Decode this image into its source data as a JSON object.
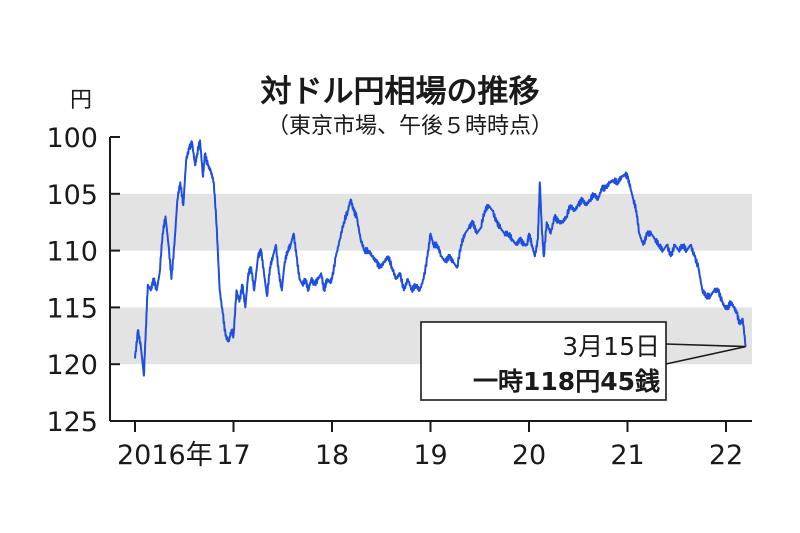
{
  "chart_data": {
    "type": "line",
    "title": "対ドル円相場の推移",
    "subtitle": "（東京市場、午後５時時点）",
    "ylabel": "円",
    "yaxis_inverted": true,
    "ylim": [
      100,
      125
    ],
    "yticks": [
      "100",
      "105",
      "110",
      "115",
      "120",
      "125"
    ],
    "shaded_bands": [
      [
        105,
        110
      ],
      [
        115,
        120
      ]
    ],
    "xlim": [
      2016.0,
      2022.25
    ],
    "x_tick_labels": [
      {
        "x": 2016.0,
        "label": "2016年"
      },
      {
        "x": 2017.0,
        "label": "17"
      },
      {
        "x": 2018.0,
        "label": "18"
      },
      {
        "x": 2019.0,
        "label": "19"
      },
      {
        "x": 2020.0,
        "label": "20"
      },
      {
        "x": 2021.0,
        "label": "21"
      },
      {
        "x": 2022.0,
        "label": "22"
      }
    ],
    "series": [
      {
        "color": "#1f4fe0",
        "points": [
          [
            2016.0,
            119.5
          ],
          [
            2016.03,
            117.0
          ],
          [
            2016.06,
            118.5
          ],
          [
            2016.09,
            121.0
          ],
          [
            2016.11,
            117.0
          ],
          [
            2016.13,
            113.0
          ],
          [
            2016.16,
            113.5
          ],
          [
            2016.19,
            112.5
          ],
          [
            2016.22,
            113.5
          ],
          [
            2016.25,
            112.0
          ],
          [
            2016.28,
            108.5
          ],
          [
            2016.31,
            107.0
          ],
          [
            2016.34,
            109.5
          ],
          [
            2016.37,
            112.5
          ],
          [
            2016.4,
            109.5
          ],
          [
            2016.43,
            105.5
          ],
          [
            2016.46,
            104.0
          ],
          [
            2016.49,
            106.0
          ],
          [
            2016.52,
            102.0
          ],
          [
            2016.55,
            101.0
          ],
          [
            2016.58,
            100.5
          ],
          [
            2016.61,
            102.5
          ],
          [
            2016.63,
            101.5
          ],
          [
            2016.66,
            100.3
          ],
          [
            2016.69,
            103.5
          ],
          [
            2016.71,
            101.5
          ],
          [
            2016.74,
            102.5
          ],
          [
            2016.77,
            103.0
          ],
          [
            2016.8,
            104.0
          ],
          [
            2016.83,
            108.0
          ],
          [
            2016.86,
            113.5
          ],
          [
            2016.89,
            115.5
          ],
          [
            2016.92,
            117.5
          ],
          [
            2016.95,
            118.0
          ],
          [
            2016.98,
            117.0
          ],
          [
            2017.0,
            117.5
          ],
          [
            2017.03,
            113.5
          ],
          [
            2017.06,
            114.5
          ],
          [
            2017.09,
            113.0
          ],
          [
            2017.12,
            115.0
          ],
          [
            2017.15,
            112.0
          ],
          [
            2017.18,
            111.5
          ],
          [
            2017.21,
            113.5
          ],
          [
            2017.25,
            110.5
          ],
          [
            2017.28,
            110.0
          ],
          [
            2017.31,
            112.0
          ],
          [
            2017.34,
            114.0
          ],
          [
            2017.37,
            111.5
          ],
          [
            2017.4,
            110.5
          ],
          [
            2017.43,
            109.5
          ],
          [
            2017.46,
            112.0
          ],
          [
            2017.49,
            113.5
          ],
          [
            2017.52,
            111.0
          ],
          [
            2017.55,
            110.0
          ],
          [
            2017.58,
            109.5
          ],
          [
            2017.61,
            108.5
          ],
          [
            2017.64,
            110.5
          ],
          [
            2017.67,
            112.5
          ],
          [
            2017.7,
            113.0
          ],
          [
            2017.73,
            112.5
          ],
          [
            2017.76,
            113.5
          ],
          [
            2017.79,
            112.5
          ],
          [
            2017.82,
            113.0
          ],
          [
            2017.86,
            112.5
          ],
          [
            2017.89,
            112.0
          ],
          [
            2017.92,
            113.5
          ],
          [
            2017.95,
            112.5
          ],
          [
            2017.98,
            112.8
          ],
          [
            2018.0,
            112.5
          ],
          [
            2018.04,
            110.5
          ],
          [
            2018.08,
            109.0
          ],
          [
            2018.12,
            107.5
          ],
          [
            2018.16,
            106.5
          ],
          [
            2018.19,
            105.5
          ],
          [
            2018.22,
            106.5
          ],
          [
            2018.25,
            107.0
          ],
          [
            2018.29,
            109.0
          ],
          [
            2018.33,
            110.0
          ],
          [
            2018.37,
            110.0
          ],
          [
            2018.41,
            110.5
          ],
          [
            2018.45,
            111.0
          ],
          [
            2018.49,
            111.5
          ],
          [
            2018.53,
            111.0
          ],
          [
            2018.57,
            110.5
          ],
          [
            2018.61,
            111.5
          ],
          [
            2018.65,
            112.5
          ],
          [
            2018.69,
            112.0
          ],
          [
            2018.73,
            113.5
          ],
          [
            2018.77,
            112.5
          ],
          [
            2018.81,
            113.5
          ],
          [
            2018.85,
            113.0
          ],
          [
            2018.89,
            113.5
          ],
          [
            2018.93,
            112.5
          ],
          [
            2018.97,
            110.5
          ],
          [
            2019.0,
            108.5
          ],
          [
            2019.03,
            109.5
          ],
          [
            2019.07,
            109.5
          ],
          [
            2019.11,
            110.5
          ],
          [
            2019.15,
            111.0
          ],
          [
            2019.19,
            110.5
          ],
          [
            2019.23,
            111.0
          ],
          [
            2019.27,
            111.5
          ],
          [
            2019.31,
            109.5
          ],
          [
            2019.35,
            108.5
          ],
          [
            2019.39,
            108.0
          ],
          [
            2019.43,
            107.5
          ],
          [
            2019.47,
            108.5
          ],
          [
            2019.51,
            108.0
          ],
          [
            2019.55,
            106.5
          ],
          [
            2019.59,
            106.0
          ],
          [
            2019.63,
            106.5
          ],
          [
            2019.67,
            107.5
          ],
          [
            2019.71,
            108.0
          ],
          [
            2019.75,
            108.5
          ],
          [
            2019.79,
            108.5
          ],
          [
            2019.83,
            109.0
          ],
          [
            2019.87,
            109.5
          ],
          [
            2019.91,
            109.0
          ],
          [
            2019.95,
            109.5
          ],
          [
            2019.98,
            109.5
          ],
          [
            2020.0,
            108.5
          ],
          [
            2020.03,
            109.5
          ],
          [
            2020.06,
            110.5
          ],
          [
            2020.09,
            109.0
          ],
          [
            2020.11,
            104.0
          ],
          [
            2020.13,
            108.0
          ],
          [
            2020.15,
            110.5
          ],
          [
            2020.18,
            107.5
          ],
          [
            2020.22,
            108.5
          ],
          [
            2020.26,
            107.0
          ],
          [
            2020.3,
            107.5
          ],
          [
            2020.34,
            107.5
          ],
          [
            2020.38,
            107.0
          ],
          [
            2020.42,
            106.0
          ],
          [
            2020.46,
            106.5
          ],
          [
            2020.5,
            106.0
          ],
          [
            2020.54,
            105.5
          ],
          [
            2020.58,
            106.0
          ],
          [
            2020.62,
            105.5
          ],
          [
            2020.66,
            105.0
          ],
          [
            2020.7,
            105.5
          ],
          [
            2020.74,
            104.5
          ],
          [
            2020.78,
            104.5
          ],
          [
            2020.82,
            104.0
          ],
          [
            2020.86,
            103.8
          ],
          [
            2020.9,
            104.0
          ],
          [
            2020.94,
            103.5
          ],
          [
            2020.98,
            103.3
          ],
          [
            2021.0,
            103.5
          ],
          [
            2021.03,
            104.5
          ],
          [
            2021.06,
            105.5
          ],
          [
            2021.09,
            106.5
          ],
          [
            2021.12,
            108.5
          ],
          [
            2021.16,
            109.5
          ],
          [
            2021.2,
            108.5
          ],
          [
            2021.24,
            108.5
          ],
          [
            2021.28,
            109.0
          ],
          [
            2021.32,
            109.5
          ],
          [
            2021.36,
            110.0
          ],
          [
            2021.4,
            109.5
          ],
          [
            2021.44,
            110.5
          ],
          [
            2021.48,
            109.5
          ],
          [
            2021.52,
            110.0
          ],
          [
            2021.56,
            109.5
          ],
          [
            2021.6,
            110.0
          ],
          [
            2021.64,
            109.5
          ],
          [
            2021.68,
            110.5
          ],
          [
            2021.72,
            111.5
          ],
          [
            2021.76,
            113.5
          ],
          [
            2021.8,
            114.0
          ],
          [
            2021.84,
            114.0
          ],
          [
            2021.88,
            113.5
          ],
          [
            2021.92,
            113.5
          ],
          [
            2021.96,
            114.5
          ],
          [
            2021.99,
            115.0
          ],
          [
            2022.02,
            115.0
          ],
          [
            2022.05,
            114.5
          ],
          [
            2022.08,
            115.0
          ],
          [
            2022.11,
            115.5
          ],
          [
            2022.14,
            116.5
          ],
          [
            2022.17,
            116.0
          ],
          [
            2022.2,
            118.45
          ]
        ]
      }
    ],
    "annotation": {
      "line1": "3月15日",
      "line2": "一時118円45銭",
      "x": 2022.2,
      "y": 118.45
    }
  }
}
